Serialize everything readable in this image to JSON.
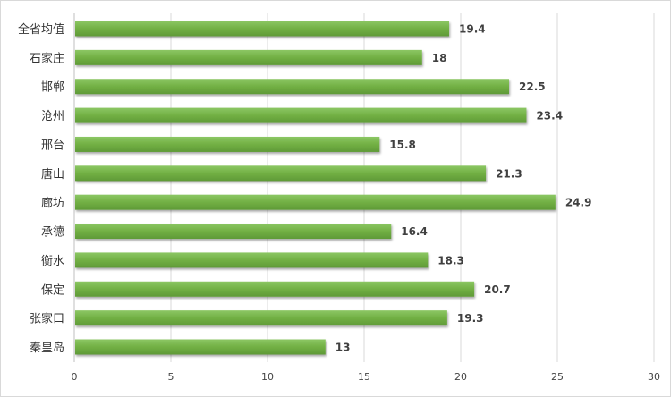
{
  "chart_data": {
    "type": "bar",
    "orientation": "horizontal",
    "title": "",
    "xlabel": "",
    "ylabel": "",
    "categories": [
      "全省均值",
      "石家庄",
      "邯郸",
      "沧州",
      "邢台",
      "唐山",
      "廊坊",
      "承德",
      "衡水",
      "保定",
      "张家口",
      "秦皇岛"
    ],
    "values": [
      19.4,
      18,
      22.5,
      23.4,
      15.8,
      21.3,
      24.9,
      16.4,
      18.3,
      20.7,
      19.3,
      13
    ],
    "xlim": [
      0,
      30
    ],
    "xticks": [
      0,
      5,
      10,
      15,
      20,
      25,
      30
    ],
    "grid": true,
    "legend": "none",
    "bar_color": "#70ad47"
  }
}
